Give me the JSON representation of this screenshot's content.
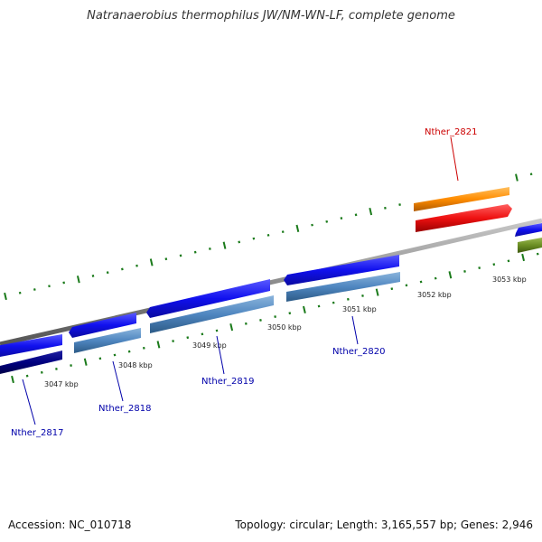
{
  "title": "Natranaerobius thermophilus JW/NM-WN-LF, complete genome",
  "accession": "Accession: NC_010718",
  "summary": "Topology: circular; Length: 3,165,557 bp; Genes: 2,946",
  "ticks": [
    "3047 kbp",
    "3048 kbp",
    "3049 kbp",
    "3050 kbp",
    "3051 kbp",
    "3052 kbp",
    "3053 kbp"
  ],
  "genes": [
    {
      "label": "Nther_2817",
      "color": "#0000aa"
    },
    {
      "label": "Nther_2818",
      "color": "#0000aa"
    },
    {
      "label": "Nther_2819",
      "color": "#0000aa"
    },
    {
      "label": "Nther_2820",
      "color": "#0000aa"
    },
    {
      "label": "Nther_2821",
      "color": "#cc0000"
    }
  ],
  "colors": {
    "backbone": "#8c8c8c",
    "cds_forward": "#1a1aee",
    "cds_protein": "#4f86c0",
    "rna_forward": "#ff8c00",
    "rna": "#ee1111",
    "olive": "#6b8e23",
    "navy": "#000080",
    "tick": "#1a7a1a"
  }
}
